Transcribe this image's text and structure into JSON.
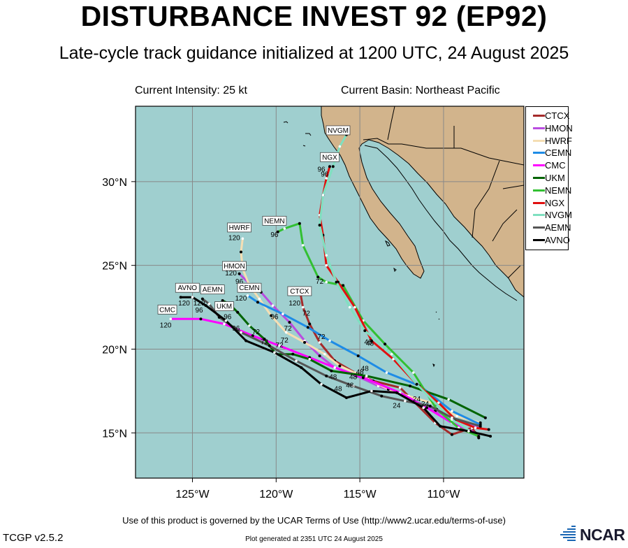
{
  "header": {
    "title": "DISTURBANCE INVEST 92 (EP92)",
    "subtitle": "Late-cycle track guidance initialized at 1200 UTC, 24 August 2025"
  },
  "info": {
    "intensity": "Current Intensity: 25 kt",
    "basin": "Current Basin: Northeast Pacific"
  },
  "colors": {
    "ocean": "#9fcfcf",
    "land": "#d2b48c",
    "grid": "#888888"
  },
  "axes": {
    "x_ticks": [
      "125°W",
      "120°W",
      "115°W",
      "110°W"
    ],
    "y_ticks": [
      "30°N",
      "25°N",
      "20°N",
      "15°N"
    ],
    "lon_range": [
      -128.4,
      -105.2
    ],
    "lat_range": [
      12.3,
      34.5
    ]
  },
  "legend": [
    {
      "name": "CTCX",
      "color": "#a52a2a"
    },
    {
      "name": "HMON",
      "color": "#b94ce0"
    },
    {
      "name": "HWRF",
      "color": "#f5deb3"
    },
    {
      "name": "CEMN",
      "color": "#1e8ce6"
    },
    {
      "name": "CMC",
      "color": "#ff00ff"
    },
    {
      "name": "UKM",
      "color": "#006400"
    },
    {
      "name": "NEMN",
      "color": "#32c032"
    },
    {
      "name": "NGX",
      "color": "#e01010"
    },
    {
      "name": "NVGM",
      "color": "#7fe0c0"
    },
    {
      "name": "AEMN",
      "color": "#555555"
    },
    {
      "name": "AVNO",
      "color": "#000000"
    }
  ],
  "chart_data": {
    "type": "map-tracks",
    "tracks": [
      {
        "name": "CTCX",
        "points": [
          [
            -107.9,
            14.7
          ],
          [
            -108.3,
            15.3
          ],
          [
            -109.5,
            14.9
          ],
          [
            -110.5,
            15.6
          ],
          [
            -111.7,
            16.8
          ],
          [
            -112.6,
            17.7
          ],
          [
            -114.2,
            18.1
          ],
          [
            -115.3,
            18.6
          ],
          [
            -116.5,
            19.3
          ],
          [
            -117.4,
            20.4
          ],
          [
            -118.0,
            21.5
          ],
          [
            -118.4,
            22.5
          ],
          [
            -118.6,
            23.6
          ]
        ],
        "label_at": [
          -118.6,
          23.4
        ],
        "tau_labels": [
          {
            "t": "24",
            "p": [
              -111.6,
              16.9
            ]
          },
          {
            "t": "48",
            "p": [
              -115.0,
              18.5
            ]
          },
          {
            "t": "72",
            "p": [
              -118.2,
              22.0
            ]
          },
          {
            "t": "96",
            "p": [
              -118.8,
              23.3
            ]
          },
          {
            "t": "120",
            "p": [
              -118.9,
              22.6
            ]
          }
        ]
      },
      {
        "name": "HMON",
        "points": [
          [
            -107.8,
            15.3
          ],
          [
            -109.0,
            15.7
          ],
          [
            -110.5,
            16.3
          ],
          [
            -111.7,
            16.9
          ],
          [
            -112.8,
            17.4
          ],
          [
            -113.9,
            17.8
          ],
          [
            -115.2,
            18.4
          ],
          [
            -116.5,
            18.9
          ],
          [
            -117.4,
            19.6
          ],
          [
            -118.3,
            20.5
          ],
          [
            -119.2,
            21.6
          ],
          [
            -120.2,
            22.6
          ],
          [
            -120.9,
            23.4
          ],
          [
            -121.6,
            23.9
          ],
          [
            -122.2,
            24.5
          ]
        ],
        "label_at": [
          -122.5,
          24.9
        ],
        "tau_labels": [
          {
            "t": "48",
            "p": [
              -115.4,
              18.2
            ]
          },
          {
            "t": "72",
            "p": [
              -119.3,
              21.1
            ]
          },
          {
            "t": "96",
            "p": [
              -122.2,
              23.9
            ]
          },
          {
            "t": "120",
            "p": [
              -122.7,
              24.4
            ]
          }
        ]
      },
      {
        "name": "HWRF",
        "points": [
          [
            -107.8,
            15.6
          ],
          [
            -109.2,
            16.0
          ],
          [
            -110.4,
            16.7
          ],
          [
            -112.1,
            17.2
          ],
          [
            -113.3,
            17.6
          ],
          [
            -114.5,
            18.2
          ],
          [
            -116.2,
            19.0
          ],
          [
            -117.1,
            19.7
          ],
          [
            -118.3,
            20.4
          ],
          [
            -119.4,
            21.0
          ],
          [
            -120.3,
            22.0
          ],
          [
            -121.0,
            23.0
          ],
          [
            -121.6,
            23.8
          ],
          [
            -122.0,
            24.8
          ],
          [
            -122.1,
            25.8
          ],
          [
            -122.0,
            26.6
          ]
        ],
        "label_at": [
          -122.2,
          27.2
        ],
        "tau_labels": [
          {
            "t": "72",
            "p": [
              -119.5,
              20.4
            ]
          },
          {
            "t": "120",
            "p": [
              -122.5,
              26.5
            ]
          }
        ]
      },
      {
        "name": "CEMN",
        "points": [
          [
            -107.8,
            15.5
          ],
          [
            -109.5,
            16.3
          ],
          [
            -111.4,
            17.8
          ],
          [
            -113.4,
            18.6
          ],
          [
            -115.1,
            19.6
          ],
          [
            -116.8,
            20.5
          ],
          [
            -118.1,
            21.3
          ],
          [
            -119.6,
            22.1
          ],
          [
            -121.1,
            22.8
          ],
          [
            -121.7,
            23.2
          ]
        ],
        "label_at": [
          -121.6,
          23.6
        ],
        "tau_labels": [
          {
            "t": "48",
            "p": [
              -114.7,
              18.7
            ]
          },
          {
            "t": "72",
            "p": [
              -117.3,
              20.6
            ]
          },
          {
            "t": "96",
            "p": [
              -120.1,
              21.8
            ]
          },
          {
            "t": "120",
            "p": [
              -122.1,
              22.9
            ]
          }
        ]
      },
      {
        "name": "CMC",
        "points": [
          [
            -108.1,
            15.0
          ],
          [
            -109.5,
            15.6
          ],
          [
            -111.0,
            16.5
          ],
          [
            -112.6,
            17.4
          ],
          [
            -114.8,
            18.3
          ],
          [
            -116.5,
            18.9
          ],
          [
            -118.0,
            19.5
          ],
          [
            -119.8,
            20.2
          ],
          [
            -121.4,
            20.8
          ],
          [
            -123.1,
            21.5
          ],
          [
            -124.5,
            21.8
          ],
          [
            -126.3,
            21.8
          ]
        ],
        "label_at": [
          -126.5,
          22.3
        ],
        "tau_labels": [
          {
            "t": "72",
            "p": [
              -121.2,
              20.9
            ]
          },
          {
            "t": "120",
            "p": [
              -126.6,
              21.3
            ]
          }
        ]
      },
      {
        "name": "UKM",
        "points": [
          [
            -107.5,
            15.9
          ],
          [
            -109.7,
            17.0
          ],
          [
            -112.0,
            17.8
          ],
          [
            -114.6,
            18.4
          ],
          [
            -116.7,
            18.7
          ],
          [
            -118.0,
            19.4
          ],
          [
            -119.0,
            19.7
          ],
          [
            -120.0,
            19.7
          ],
          [
            -120.7,
            20.6
          ],
          [
            -121.6,
            21.4
          ],
          [
            -122.3,
            22.2
          ],
          [
            -122.8,
            22.7
          ],
          [
            -123.2,
            22.9
          ]
        ],
        "label_at": [
          -123.1,
          22.5
        ],
        "tau_labels": [
          {
            "t": "48",
            "p": [
              -116.6,
              18.2
            ]
          },
          {
            "t": "72",
            "p": [
              -119.8,
              20.1
            ]
          },
          {
            "t": "96",
            "p": [
              -122.4,
              21.1
            ]
          }
        ]
      },
      {
        "name": "NEMN",
        "points": [
          [
            -107.9,
            14.8
          ],
          [
            -109.1,
            15.3
          ],
          [
            -110.4,
            16.4
          ],
          [
            -111.8,
            18.6
          ],
          [
            -113.5,
            20.3
          ],
          [
            -114.8,
            21.7
          ],
          [
            -116.0,
            23.8
          ],
          [
            -117.0,
            24.0
          ],
          [
            -117.5,
            24.3
          ],
          [
            -118.4,
            26.2
          ],
          [
            -118.6,
            27.5
          ],
          [
            -119.5,
            27.2
          ],
          [
            -119.9,
            27.0
          ]
        ],
        "label_at": [
          -120.1,
          27.6
        ],
        "tau_labels": [
          {
            "t": "48",
            "p": [
              -114.5,
              20.3
            ]
          },
          {
            "t": "72",
            "p": [
              -117.4,
              23.9
            ]
          },
          {
            "t": "96",
            "p": [
              -120.1,
              26.7
            ]
          }
        ]
      },
      {
        "name": "NGX",
        "points": [
          [
            -107.3,
            15.2
          ],
          [
            -108.1,
            15.3
          ],
          [
            -109.3,
            15.8
          ],
          [
            -110.3,
            16.8
          ],
          [
            -111.6,
            17.9
          ],
          [
            -113.0,
            19.4
          ],
          [
            -114.3,
            20.5
          ],
          [
            -115.3,
            22.5
          ],
          [
            -116.3,
            24.0
          ],
          [
            -117.0,
            25.0
          ],
          [
            -117.2,
            26.8
          ],
          [
            -117.4,
            28.0
          ],
          [
            -117.2,
            29.2
          ],
          [
            -117.0,
            30.2
          ],
          [
            -116.8,
            30.9
          ]
        ],
        "label_at": [
          -116.8,
          31.4
        ],
        "tau_labels": [
          {
            "t": "48",
            "p": [
              -114.4,
              20.2
            ]
          },
          {
            "t": "96",
            "p": [
              -117.3,
              30.6
            ]
          }
        ]
      },
      {
        "name": "NVGM",
        "points": [
          [
            -108.4,
            15.1
          ],
          [
            -109.5,
            15.8
          ],
          [
            -111.6,
            17.9
          ],
          [
            -113.1,
            19.7
          ],
          [
            -114.7,
            21.1
          ],
          [
            -115.6,
            22.5
          ],
          [
            -116.4,
            24.0
          ],
          [
            -117.0,
            25.6
          ],
          [
            -117.4,
            27.4
          ],
          [
            -117.2,
            29.2
          ],
          [
            -116.6,
            30.9
          ],
          [
            -116.2,
            32.1
          ],
          [
            -115.8,
            32.8
          ]
        ],
        "label_at": [
          -116.3,
          33.0
        ],
        "tau_labels": [
          {
            "t": "96",
            "p": [
              -117.1,
              30.3
            ]
          }
        ]
      },
      {
        "name": "AEMN",
        "points": [
          [
            -107.8,
            15.4
          ],
          [
            -109.5,
            15.9
          ],
          [
            -110.8,
            16.6
          ],
          [
            -112.3,
            16.9
          ],
          [
            -113.7,
            17.2
          ],
          [
            -115.4,
            17.8
          ],
          [
            -117.0,
            18.4
          ],
          [
            -118.8,
            19.3
          ],
          [
            -120.4,
            20.2
          ],
          [
            -122.1,
            21.0
          ],
          [
            -123.4,
            21.9
          ],
          [
            -124.0,
            22.7
          ],
          [
            -124.4,
            23.0
          ]
        ],
        "label_at": [
          -123.8,
          23.5
        ],
        "tau_labels": [
          {
            "t": "24",
            "p": [
              -112.8,
              16.5
            ]
          },
          {
            "t": "48",
            "p": [
              -115.6,
              17.7
            ]
          },
          {
            "t": "96",
            "p": [
              -122.9,
              21.8
            ]
          },
          {
            "t": "120",
            "p": [
              -124.6,
              22.6
            ]
          }
        ]
      },
      {
        "name": "AVNO",
        "points": [
          [
            -107.2,
            14.8
          ],
          [
            -108.5,
            15.1
          ],
          [
            -110.2,
            15.4
          ],
          [
            -111.2,
            16.5
          ],
          [
            -112.8,
            17.4
          ],
          [
            -114.3,
            17.5
          ],
          [
            -115.8,
            17.1
          ],
          [
            -117.3,
            17.9
          ],
          [
            -118.5,
            18.9
          ],
          [
            -120.1,
            19.8
          ],
          [
            -121.8,
            20.5
          ],
          [
            -123.0,
            21.7
          ],
          [
            -124.2,
            22.6
          ],
          [
            -125.0,
            23.1
          ],
          [
            -125.7,
            23.1
          ]
        ],
        "label_at": [
          -125.3,
          23.6
        ],
        "tau_labels": [
          {
            "t": "24",
            "p": [
              -111.1,
              16.6
            ]
          },
          {
            "t": "48",
            "p": [
              -116.3,
              17.5
            ]
          },
          {
            "t": "72",
            "p": [
              -120.7,
              20.3
            ]
          },
          {
            "t": "96",
            "p": [
              -124.6,
              22.2
            ]
          },
          {
            "t": "120",
            "p": [
              -125.5,
              22.6
            ]
          }
        ]
      }
    ]
  },
  "footer": {
    "terms": "Use of this product is governed by the UCAR Terms of Use (http://www2.ucar.edu/terms-of-use)",
    "generated": "Plot generated at 2351 UTC   24 August 2025",
    "version": "TCGP v2.5.2",
    "logo": "NCAR"
  }
}
